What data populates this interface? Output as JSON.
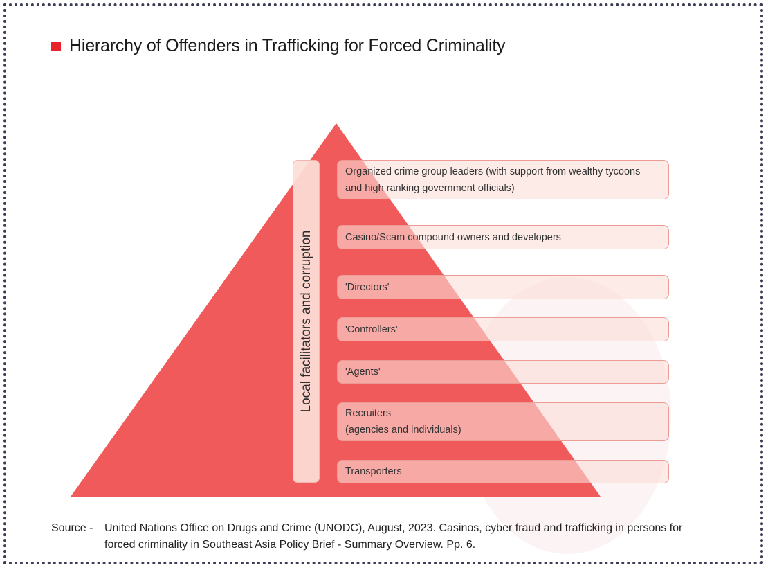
{
  "title": "Hierarchy of Offenders in Trafficking for Forced Criminality",
  "colors": {
    "accent": "#e8242a",
    "pyramid": "#f05a5b",
    "box_fill": "#fcded7",
    "box_border": "#ec9c95",
    "frame_dots": "#3b3d55"
  },
  "side_label": "Local facilitators and corruption",
  "levels": [
    {
      "line1": "Organized crime group leaders (with support from wealthy tycoons",
      "line2": "and high ranking government officials)"
    },
    {
      "line1": "Casino/Scam compound owners and developers"
    },
    {
      "line1": "'Directors'"
    },
    {
      "line1": "'Controllers'"
    },
    {
      "line1": "'Agents'"
    },
    {
      "line1": "Recruiters",
      "line2": "(agencies and individuals)"
    },
    {
      "line1": "Transporters"
    }
  ],
  "source": {
    "label": "Source -",
    "text": "United Nations Office on Drugs and Crime (UNODC), August, 2023. Casinos, cyber fraud and trafficking in persons for forced criminality in Southeast Asia Policy Brief - Summary Overview. Pp. 6."
  }
}
